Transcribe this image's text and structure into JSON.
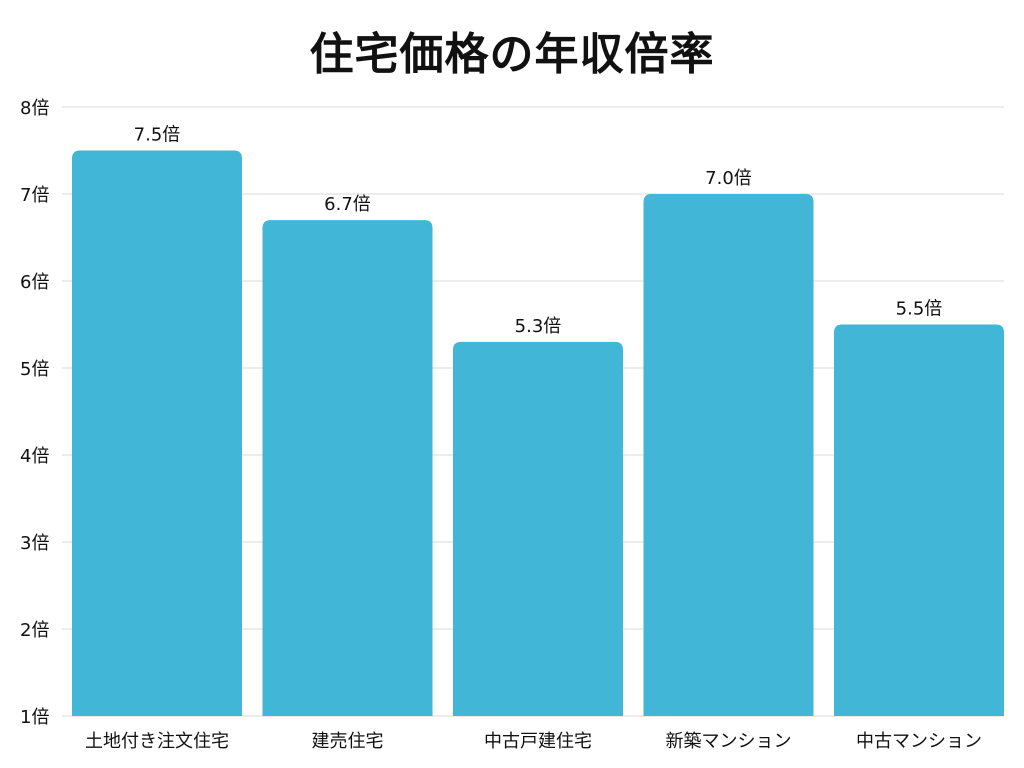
{
  "chart_data": {
    "type": "bar",
    "title": "住宅価格の年収倍率",
    "categories": [
      "土地付き注文住宅",
      "建売住宅",
      "中古戸建住宅",
      "新築マンション",
      "中古マンション"
    ],
    "values": [
      7.5,
      6.7,
      5.3,
      7.0,
      5.5
    ],
    "data_labels": [
      "7.5倍",
      "6.7倍",
      "5.3倍",
      "7.0倍",
      "5.5倍"
    ],
    "yticks": [
      1,
      2,
      3,
      4,
      5,
      6,
      7,
      8
    ],
    "ytick_labels": [
      "1倍",
      "2倍",
      "3倍",
      "4倍",
      "5倍",
      "6倍",
      "7倍",
      "8倍"
    ],
    "ylim": [
      1,
      8
    ],
    "xlabel": "",
    "ylabel": "",
    "grid": true,
    "bar_color": "#42b6d6"
  }
}
